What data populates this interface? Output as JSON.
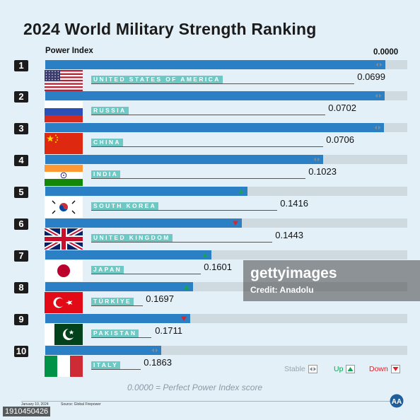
{
  "title": "2024 World Military Strength Ranking",
  "power_index_label": "Power Index",
  "power_index_top": "0.0000",
  "legend": {
    "stable": "Stable",
    "up": "Up",
    "down": "Down"
  },
  "footnote": "0.0000 = Perfect Power Index score",
  "date": "January 10, 2024",
  "source": "Source: Global Firepower",
  "watermark": {
    "brand": "gettyimages",
    "credit": "Credit: Anadolu",
    "image_id": "1910450426"
  },
  "colors": {
    "bar": "#2b7fc4",
    "track": "#cfd9e0",
    "label": "#6ec8c4",
    "up": "#18a35a",
    "down": "#d8262e",
    "stable": "#7a8a96"
  },
  "chart_data": {
    "type": "bar",
    "title": "2024 World Military Strength Ranking",
    "ylabel": "Power Index",
    "note": "0.0000 = Perfect Power Index score",
    "rows": [
      {
        "rank": "1",
        "country": "UNITED STATES OF AMERICA",
        "score": "0.0699",
        "value": 0.0699,
        "trend": "stable",
        "flag": "us-flag"
      },
      {
        "rank": "2",
        "country": "RUSSIA",
        "score": "0.0702",
        "value": 0.0702,
        "trend": "stable",
        "flag": "russia-flag"
      },
      {
        "rank": "3",
        "country": "CHINA",
        "score": "0.0706",
        "value": 0.0706,
        "trend": "stable",
        "flag": "china-flag"
      },
      {
        "rank": "4",
        "country": "INDIA",
        "score": "0.1023",
        "value": 0.1023,
        "trend": "stable",
        "flag": "india-flag"
      },
      {
        "rank": "5",
        "country": "SOUTH KOREA",
        "score": "0.1416",
        "value": 0.1416,
        "trend": "up",
        "flag": "south-korea-flag"
      },
      {
        "rank": "6",
        "country": "UNITED KINGDOM",
        "score": "0.1443",
        "value": 0.1443,
        "trend": "down",
        "flag": "uk-flag"
      },
      {
        "rank": "7",
        "country": "JAPAN",
        "score": "0.1601",
        "value": 0.1601,
        "trend": "up",
        "flag": "japan-flag"
      },
      {
        "rank": "8",
        "country": "TÜRKİYE",
        "score": "0.1697",
        "value": 0.1697,
        "trend": "up",
        "flag": "turkiye-flag"
      },
      {
        "rank": "9",
        "country": "PAKISTAN",
        "score": "0.1711",
        "value": 0.1711,
        "trend": "down",
        "flag": "pakistan-flag"
      },
      {
        "rank": "10",
        "country": "ITALY",
        "score": "0.1863",
        "value": 0.1863,
        "trend": "stable",
        "flag": "italy-flag"
      }
    ]
  }
}
